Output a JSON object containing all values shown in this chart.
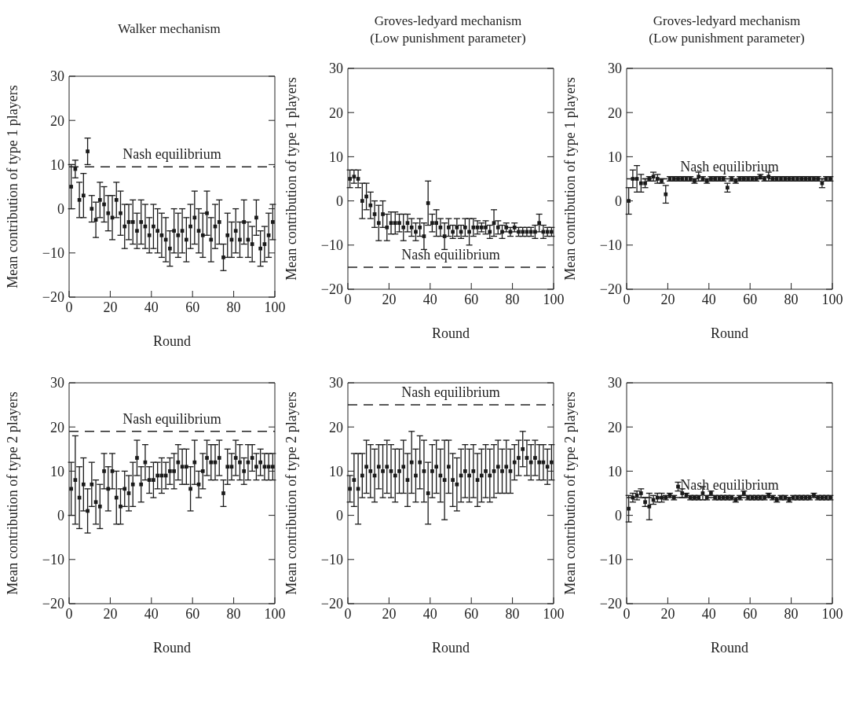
{
  "chart_data": [
    {
      "type": "scatter",
      "title": "Walker mechanism",
      "xlabel": "Round",
      "ylabel": "Mean contribution of type 1 players",
      "color": "#1a1a1a",
      "marker": "square",
      "xlim": [
        0,
        100
      ],
      "xticks": [
        0,
        20,
        40,
        60,
        80,
        100
      ],
      "ylim": [
        -20,
        30
      ],
      "yticks": [
        -20,
        -10,
        0,
        10,
        20,
        30
      ],
      "x": [
        1,
        3,
        5,
        7,
        9,
        11,
        13,
        15,
        17,
        19,
        21,
        23,
        25,
        27,
        29,
        31,
        33,
        35,
        37,
        39,
        41,
        43,
        45,
        47,
        49,
        51,
        53,
        55,
        57,
        59,
        61,
        63,
        65,
        67,
        69,
        71,
        73,
        75,
        77,
        79,
        81,
        83,
        85,
        87,
        89,
        91,
        93,
        95,
        97,
        99
      ],
      "values": [
        5,
        9,
        2,
        3,
        13,
        0,
        -2.5,
        2,
        1,
        -1,
        -2,
        2,
        -1,
        -4,
        -3,
        -3,
        -5,
        -3,
        -4,
        -6,
        -4,
        -5,
        -6,
        -7,
        -9,
        -5,
        -6,
        -5,
        -7,
        -4,
        -2,
        -5,
        -6,
        -1,
        -7,
        -4,
        -3,
        -11,
        -6,
        -7,
        -5,
        -7,
        -3,
        -7,
        -8,
        -2,
        -9,
        -8,
        -6,
        -3
      ],
      "errors": [
        5,
        2,
        4,
        5,
        3,
        3,
        4,
        4,
        4,
        4,
        5,
        4,
        5,
        5,
        4,
        5,
        4,
        5,
        5,
        4,
        5,
        5,
        5,
        5,
        4,
        5,
        5,
        5,
        5,
        5,
        6,
        5,
        5,
        5,
        5,
        5,
        5,
        3,
        5,
        4,
        5,
        4,
        5,
        4,
        4,
        4,
        4,
        4,
        5,
        4
      ],
      "ref_lines": [
        {
          "axis": "y",
          "value": 9.5,
          "label": "Nash equilibrium",
          "line_style": "dashed"
        }
      ]
    },
    {
      "type": "scatter",
      "title": "Groves-ledyard mechanism",
      "subtitle": "(Low punishment parameter)",
      "xlabel": "Round",
      "ylabel": "Mean contribution of type 1 players",
      "color": "#1a1a1a",
      "marker": "square",
      "xlim": [
        0,
        100
      ],
      "xticks": [
        0,
        20,
        40,
        60,
        80,
        100
      ],
      "ylim": [
        -20,
        30
      ],
      "yticks": [
        -20,
        -10,
        0,
        10,
        20,
        30
      ],
      "x": [
        1,
        3,
        5,
        7,
        9,
        11,
        13,
        15,
        17,
        19,
        21,
        23,
        25,
        27,
        29,
        31,
        33,
        35,
        37,
        39,
        41,
        43,
        45,
        47,
        49,
        51,
        53,
        55,
        57,
        59,
        61,
        63,
        65,
        67,
        69,
        71,
        73,
        75,
        77,
        79,
        81,
        83,
        85,
        87,
        89,
        91,
        93,
        95,
        97,
        99
      ],
      "values": [
        5,
        5.5,
        5,
        0,
        1,
        -1,
        -3,
        -5,
        -3,
        -6,
        -5,
        -5,
        -5,
        -6,
        -5,
        -6,
        -7,
        -6,
        -8,
        -0.5,
        -5,
        -5,
        -6,
        -8,
        -6,
        -7,
        -6,
        -7,
        -6,
        -7,
        -6,
        -6,
        -6,
        -6,
        -7,
        -5,
        -6,
        -7,
        -6,
        -7,
        -6,
        -7,
        -7,
        -7,
        -7,
        -7,
        -5,
        -7,
        -7,
        -7
      ],
      "errors": [
        2,
        1.5,
        2,
        4,
        3,
        3,
        3,
        4,
        3,
        3,
        2.5,
        2.5,
        2,
        3,
        2,
        2,
        2,
        2,
        3,
        5,
        2,
        3,
        2,
        3,
        2,
        1.5,
        2,
        1.5,
        2,
        3,
        2,
        1.5,
        1,
        1.5,
        1.5,
        3,
        1.5,
        1.5,
        1,
        1,
        1,
        1,
        1,
        1,
        1,
        1.5,
        2,
        1.5,
        1,
        1
      ],
      "ref_lines": [
        {
          "axis": "y",
          "value": -15,
          "label": "Nash equilibrium",
          "line_style": "dashed"
        }
      ]
    },
    {
      "type": "scatter",
      "title": "Groves-ledyard mechanism",
      "subtitle": "(Low punishment parameter)",
      "xlabel": "Round",
      "ylabel": "Mean contribution of type 1 players",
      "color": "#1a1a1a",
      "marker": "square",
      "xlim": [
        0,
        100
      ],
      "xticks": [
        0,
        20,
        40,
        60,
        80,
        100
      ],
      "ylim": [
        -20,
        30
      ],
      "yticks": [
        -20,
        -10,
        0,
        10,
        20,
        30
      ],
      "x": [
        1,
        3,
        5,
        7,
        9,
        11,
        13,
        15,
        17,
        19,
        21,
        23,
        25,
        27,
        29,
        31,
        33,
        35,
        37,
        39,
        41,
        43,
        45,
        47,
        49,
        51,
        53,
        55,
        57,
        59,
        61,
        63,
        65,
        67,
        69,
        71,
        73,
        75,
        77,
        79,
        81,
        83,
        85,
        87,
        89,
        91,
        93,
        95,
        97,
        99
      ],
      "values": [
        0,
        5,
        5,
        4,
        4,
        5,
        5.5,
        5,
        4.5,
        1.5,
        5,
        5,
        5,
        5,
        5,
        5,
        4.5,
        5.5,
        5,
        4.5,
        5,
        5,
        5,
        5,
        3,
        5,
        4.5,
        5,
        5,
        5,
        5,
        5,
        5.5,
        5,
        5.5,
        5,
        5,
        5,
        5,
        5,
        5,
        5,
        5,
        5,
        5,
        5,
        5,
        4,
        5,
        5
      ],
      "errors": [
        3,
        2,
        3,
        2,
        1,
        0.5,
        1,
        1,
        0.5,
        2,
        0.5,
        0.5,
        0.5,
        0.5,
        0.5,
        0.5,
        0.5,
        1,
        0.5,
        0.5,
        0.5,
        0.5,
        0.5,
        0.5,
        1,
        0.5,
        0.5,
        0.5,
        0.5,
        0.5,
        0.5,
        0.5,
        0.5,
        0.5,
        1,
        0.5,
        0.5,
        0.5,
        0.5,
        0.5,
        0.5,
        0.5,
        0.5,
        0.5,
        0.5,
        0.5,
        0.5,
        1,
        0.5,
        0.5
      ],
      "ref_lines": [
        {
          "axis": "y",
          "value": 5,
          "label": "Nash equilibrium",
          "line_style": "dashed"
        }
      ]
    },
    {
      "type": "scatter",
      "xlabel": "Round",
      "ylabel": "Mean contribution of type 2 players",
      "color": "#1a1a1a",
      "marker": "square",
      "xlim": [
        0,
        100
      ],
      "xticks": [
        0,
        20,
        40,
        60,
        80,
        100
      ],
      "ylim": [
        -20,
        30
      ],
      "yticks": [
        -20,
        -10,
        0,
        10,
        20,
        30
      ],
      "x": [
        1,
        3,
        5,
        7,
        9,
        11,
        13,
        15,
        17,
        19,
        21,
        23,
        25,
        27,
        29,
        31,
        33,
        35,
        37,
        39,
        41,
        43,
        45,
        47,
        49,
        51,
        53,
        55,
        57,
        59,
        61,
        63,
        65,
        67,
        69,
        71,
        73,
        75,
        77,
        79,
        81,
        83,
        85,
        87,
        89,
        91,
        93,
        95,
        97,
        99
      ],
      "values": [
        6,
        8,
        4,
        7,
        1,
        7,
        3,
        2,
        10,
        6,
        10,
        4,
        2,
        6,
        5,
        7,
        13,
        7,
        12,
        8,
        8,
        9,
        9,
        9,
        10,
        10,
        12,
        11,
        11,
        6,
        12,
        7,
        10,
        13,
        12,
        12,
        13,
        5,
        11,
        11,
        13,
        12,
        10,
        12,
        13,
        11,
        12,
        11,
        11,
        11
      ],
      "errors": [
        6,
        10,
        7,
        6,
        5,
        5,
        5,
        5,
        4,
        5,
        4,
        6,
        4,
        4,
        4,
        5,
        4,
        4,
        4,
        3,
        4,
        3,
        4,
        3,
        3,
        4,
        4,
        4,
        4,
        5,
        5,
        3,
        4,
        4,
        4,
        4,
        4,
        3,
        4,
        3,
        4,
        4,
        3,
        4,
        3,
        3,
        3,
        3,
        3,
        3
      ],
      "ref_lines": [
        {
          "axis": "y",
          "value": 19,
          "label": "Nash equilibrium",
          "line_style": "dashed"
        }
      ]
    },
    {
      "type": "scatter",
      "xlabel": "Round",
      "ylabel": "Mean contribution of type 2 players",
      "color": "#1a1a1a",
      "marker": "square",
      "xlim": [
        0,
        100
      ],
      "xticks": [
        0,
        20,
        40,
        60,
        80,
        100
      ],
      "ylim": [
        -20,
        30
      ],
      "yticks": [
        -20,
        -10,
        0,
        10,
        20,
        30
      ],
      "x": [
        1,
        3,
        5,
        7,
        9,
        11,
        13,
        15,
        17,
        19,
        21,
        23,
        25,
        27,
        29,
        31,
        33,
        35,
        37,
        39,
        41,
        43,
        45,
        47,
        49,
        51,
        53,
        55,
        57,
        59,
        61,
        63,
        65,
        67,
        69,
        71,
        73,
        75,
        77,
        79,
        81,
        83,
        85,
        87,
        89,
        91,
        93,
        95,
        97,
        99
      ],
      "values": [
        6,
        8,
        6,
        9,
        11,
        10,
        9,
        11,
        10,
        11,
        10,
        9,
        10,
        11,
        8,
        12,
        9,
        12,
        10,
        5,
        10,
        11,
        9,
        8,
        11,
        8,
        7,
        9,
        10,
        9,
        10,
        8,
        9,
        10,
        9,
        10,
        11,
        10,
        11,
        10,
        12,
        13,
        15,
        13,
        12,
        13,
        12,
        12,
        11,
        12
      ],
      "errors": [
        3,
        6,
        8,
        5,
        6,
        6,
        6,
        5,
        6,
        6,
        6,
        6,
        5,
        6,
        6,
        7,
        6,
        6,
        7,
        7,
        6,
        6,
        6,
        9,
        6,
        6,
        6,
        6,
        6,
        6,
        6,
        6,
        6,
        6,
        6,
        6,
        6,
        5,
        6,
        5,
        4,
        4,
        4,
        4,
        4,
        4,
        4,
        4,
        4,
        4
      ],
      "ref_lines": [
        {
          "axis": "y",
          "value": 25,
          "label": "Nash equilibrium",
          "line_style": "dashed"
        }
      ]
    },
    {
      "type": "scatter",
      "xlabel": "Round",
      "ylabel": "Mean contribution of type 2 players",
      "color": "#1a1a1a",
      "marker": "square",
      "xlim": [
        0,
        100
      ],
      "xticks": [
        0,
        20,
        40,
        60,
        80,
        100
      ],
      "ylim": [
        -20,
        30
      ],
      "yticks": [
        -20,
        -10,
        0,
        10,
        20,
        30
      ],
      "x": [
        1,
        3,
        5,
        7,
        9,
        11,
        13,
        15,
        17,
        19,
        21,
        23,
        25,
        27,
        29,
        31,
        33,
        35,
        37,
        39,
        41,
        43,
        45,
        47,
        49,
        51,
        53,
        55,
        57,
        59,
        61,
        63,
        65,
        67,
        69,
        71,
        73,
        75,
        77,
        79,
        81,
        83,
        85,
        87,
        89,
        91,
        93,
        95,
        97,
        99
      ],
      "values": [
        1.5,
        4,
        4.5,
        5,
        3,
        2,
        3.5,
        4,
        4,
        4,
        4.5,
        4,
        6.5,
        5,
        4.5,
        4,
        4,
        4,
        5,
        4,
        5,
        4,
        4,
        4,
        4,
        4,
        3.5,
        4,
        5,
        4,
        4,
        4,
        4,
        4,
        4.5,
        4,
        3.5,
        4,
        4,
        3.5,
        4,
        4,
        4,
        4,
        4,
        4.5,
        4,
        4,
        4,
        4
      ],
      "errors": [
        3,
        1,
        1,
        1,
        1,
        3,
        1,
        1,
        1,
        0.5,
        0.5,
        0.5,
        1,
        1,
        0.5,
        0.5,
        0.5,
        0.5,
        1.5,
        0.5,
        0.5,
        0.5,
        0.5,
        0.5,
        0.5,
        0.5,
        0.5,
        0.5,
        0.5,
        0.5,
        0.5,
        0.5,
        0.5,
        0.5,
        0.5,
        0.5,
        0.5,
        0.5,
        0.5,
        0.5,
        0.5,
        0.5,
        0.5,
        0.5,
        0.5,
        0.5,
        0.5,
        0.5,
        0.5,
        0.5
      ],
      "ref_lines": [
        {
          "axis": "y",
          "value": 4,
          "label": "Nash equilibrium",
          "line_style": "dashed"
        }
      ]
    }
  ]
}
